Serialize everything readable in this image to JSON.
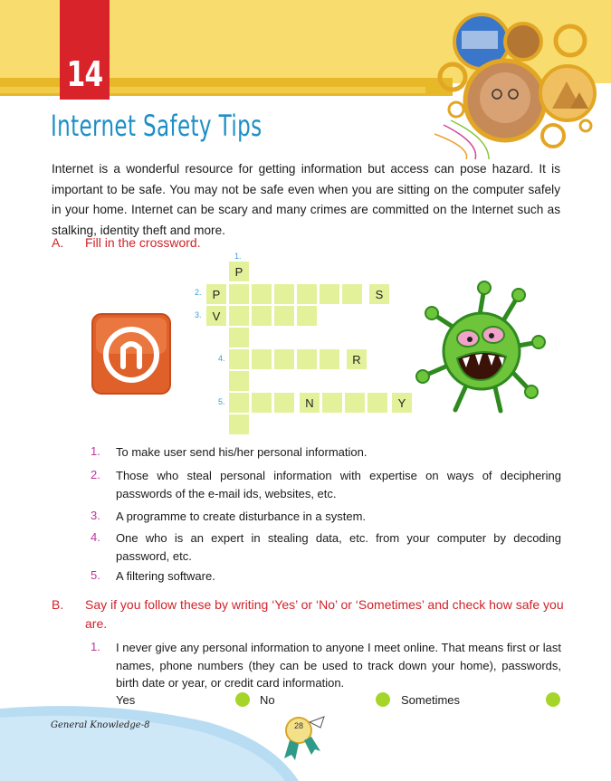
{
  "chapter": {
    "number": "14",
    "title": "Internet Safety Tips"
  },
  "intro": "Internet is a wonderful resource for getting information but access can pose hazard. It is important to be safe. You may not be safe even when you are sitting on the computer safely in your home. Internet can be scary and many crimes are committed on the Internet such as stalking, identity theft and more.",
  "section_a": {
    "label": "A.",
    "heading": "Fill in the crossword.",
    "crossword": {
      "numbers": [
        "1.",
        "2.",
        "3.",
        "4.",
        "5."
      ],
      "letters": [
        "P",
        "P",
        "S",
        "V",
        "R",
        "N",
        "Y"
      ]
    },
    "clues": [
      {
        "num": "1.",
        "text": "To make user send his/her personal information."
      },
      {
        "num": "2.",
        "text": "Those who steal personal information with expertise on ways of deciphering passwords of the e-mail ids, websites, etc."
      },
      {
        "num": "3.",
        "text": "A programme to create disturbance in a system."
      },
      {
        "num": "4.",
        "text": "One who is an expert in stealing data, etc. from your computer by decoding password, etc."
      },
      {
        "num": "5.",
        "text": "A filtering software."
      }
    ]
  },
  "section_b": {
    "label": "B.",
    "heading": "Say if you follow these by writing ‘Yes’ or ‘No’ or ‘Sometimes’ and check how safe you are.",
    "items": [
      {
        "num": "1.",
        "text": "I never give any personal information to anyone I meet online. That means first or last names, phone numbers (they can be used to track down your home), passwords, birth date or year, or credit card information."
      }
    ],
    "options": [
      "Yes",
      "No",
      "Sometimes"
    ]
  },
  "footer": {
    "book": "General Knowledge-8",
    "page": "28"
  },
  "colors": {
    "title": "#1e8fc6",
    "accent_red": "#d12229",
    "band": "#f8dd6e",
    "cell": "#e4f19b",
    "radio": "#a6d52a"
  }
}
